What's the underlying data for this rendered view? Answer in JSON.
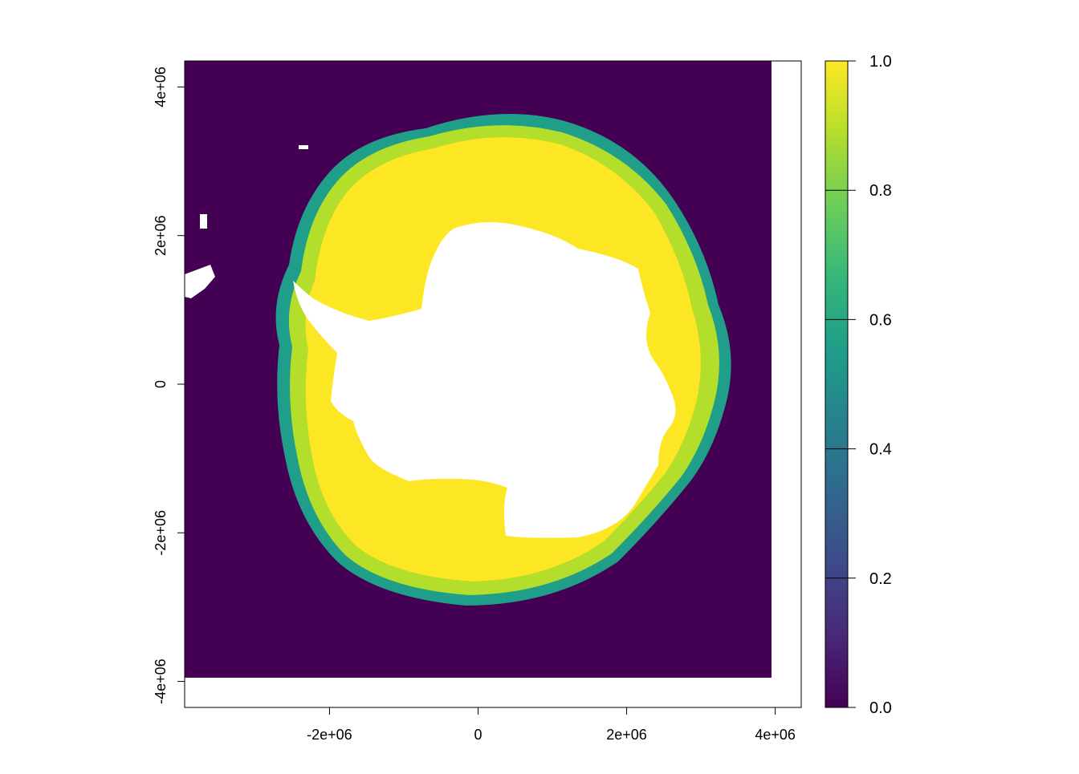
{
  "plot": {
    "x_axis": {
      "range": [
        -3950000,
        4350000
      ],
      "ticks": [
        {
          "value": -2000000,
          "label": "-2e+06"
        },
        {
          "value": 0,
          "label": "0"
        },
        {
          "value": 2000000,
          "label": "2e+06"
        },
        {
          "value": 4000000,
          "label": "4e+06"
        }
      ]
    },
    "y_axis": {
      "range": [
        -4350000,
        4350000
      ],
      "ticks": [
        {
          "value": 4000000,
          "label": "4e+06"
        },
        {
          "value": 2000000,
          "label": "2e+06"
        },
        {
          "value": 0,
          "label": "0"
        },
        {
          "value": -2000000,
          "label": "-2e+06"
        },
        {
          "value": -4000000,
          "label": "-4e+06"
        }
      ]
    },
    "raster_extent": {
      "xmin": -3950000,
      "xmax": 3950000,
      "ymin": -3950000,
      "ymax": 4350000
    },
    "ocean_color": "#440154"
  },
  "legend": {
    "range": [
      0,
      1
    ],
    "ticks": [
      {
        "value": 0.0,
        "label": "0.0"
      },
      {
        "value": 0.2,
        "label": "0.2"
      },
      {
        "value": 0.4,
        "label": "0.4"
      },
      {
        "value": 0.6,
        "label": "0.6"
      },
      {
        "value": 0.8,
        "label": "0.8"
      },
      {
        "value": 1.0,
        "label": "1.0"
      }
    ],
    "palette": [
      "#440154",
      "#482878",
      "#3E4A89",
      "#31688E",
      "#26828E",
      "#1F9E89",
      "#35B779",
      "#6DCD59",
      "#B4DE2C",
      "#FDE725"
    ]
  },
  "colors": {
    "ice_high": "#FDE725",
    "ice_mid": "#B4DE2C",
    "ice_edge": "#1F9E89",
    "land": "#FFFFFF"
  }
}
